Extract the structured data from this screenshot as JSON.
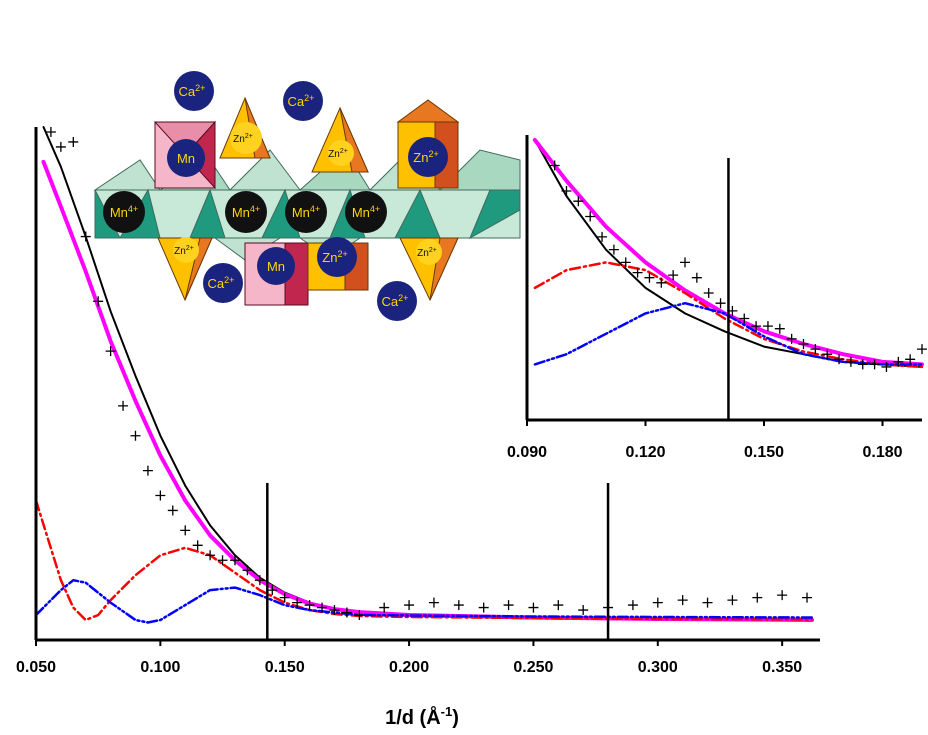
{
  "chart_data": [
    {
      "type": "scatter",
      "panel": "main",
      "xlabel": "1/d (Å",
      "xlabel_sup": "-1",
      "xlabel_close": ")",
      "xlim": [
        0.05,
        0.362
      ],
      "ylim": [
        0,
        1
      ],
      "yaxis_ticks": false,
      "xticks": [
        0.05,
        0.1,
        0.15,
        0.2,
        0.25,
        0.3,
        0.35
      ],
      "xtick_labels": [
        "0.050",
        "0.100",
        "0.150",
        "0.200",
        "0.250",
        "0.300",
        "0.350"
      ],
      "vlines": [
        0.143,
        0.28
      ],
      "grid": false,
      "legend": "none",
      "series": [
        {
          "kind": "markers",
          "marker": "+",
          "color": "#000000",
          "x": [
            0.056,
            0.06,
            0.065,
            0.07,
            0.075,
            0.08,
            0.085,
            0.09,
            0.095,
            0.1,
            0.105,
            0.11,
            0.115,
            0.12,
            0.125,
            0.13,
            0.135,
            0.14,
            0.145,
            0.15,
            0.155,
            0.16,
            0.165,
            0.17,
            0.175,
            0.18,
            0.19,
            0.2,
            0.21,
            0.22,
            0.23,
            0.24,
            0.25,
            0.26,
            0.27,
            0.28,
            0.29,
            0.3,
            0.31,
            0.32,
            0.33,
            0.34,
            0.35,
            0.36
          ],
          "y": [
            0.99,
            0.96,
            0.97,
            0.78,
            0.65,
            0.55,
            0.44,
            0.38,
            0.31,
            0.26,
            0.23,
            0.19,
            0.16,
            0.14,
            0.13,
            0.13,
            0.11,
            0.09,
            0.07,
            0.055,
            0.045,
            0.04,
            0.035,
            0.03,
            0.025,
            0.02,
            0.035,
            0.04,
            0.045,
            0.04,
            0.035,
            0.04,
            0.035,
            0.04,
            0.03,
            0.035,
            0.04,
            0.045,
            0.05,
            0.045,
            0.05,
            0.055,
            0.06,
            0.055
          ]
        },
        {
          "kind": "line",
          "style": "solid",
          "color": "#000000",
          "x": [
            0.053,
            0.06,
            0.07,
            0.08,
            0.09,
            0.1,
            0.11,
            0.12,
            0.13,
            0.14,
            0.15,
            0.16,
            0.17,
            0.18,
            0.2,
            0.25,
            0.3,
            0.362
          ],
          "y": [
            1.0,
            0.92,
            0.78,
            0.63,
            0.5,
            0.38,
            0.28,
            0.2,
            0.14,
            0.095,
            0.065,
            0.045,
            0.032,
            0.025,
            0.018,
            0.013,
            0.011,
            0.01
          ]
        },
        {
          "kind": "line",
          "style": "solid-thick",
          "color": "#ff00ff",
          "x": [
            0.053,
            0.06,
            0.07,
            0.08,
            0.09,
            0.1,
            0.11,
            0.12,
            0.13,
            0.14,
            0.15,
            0.16,
            0.17,
            0.18,
            0.2,
            0.25,
            0.3,
            0.362
          ],
          "y": [
            0.93,
            0.84,
            0.71,
            0.57,
            0.45,
            0.34,
            0.25,
            0.18,
            0.13,
            0.09,
            0.062,
            0.043,
            0.032,
            0.026,
            0.02,
            0.015,
            0.012,
            0.01
          ]
        },
        {
          "kind": "line",
          "style": "dash-dot",
          "color": "#ff0000",
          "x": [
            0.05,
            0.055,
            0.06,
            0.065,
            0.07,
            0.075,
            0.08,
            0.09,
            0.1,
            0.11,
            0.12,
            0.13,
            0.14,
            0.15,
            0.16,
            0.17,
            0.18,
            0.2,
            0.25,
            0.3,
            0.362
          ],
          "y": [
            0.25,
            0.17,
            0.09,
            0.035,
            0.01,
            0.02,
            0.05,
            0.1,
            0.14,
            0.155,
            0.14,
            0.105,
            0.07,
            0.045,
            0.03,
            0.022,
            0.018,
            0.016,
            0.014,
            0.012,
            0.011
          ]
        },
        {
          "kind": "line",
          "style": "dash-dot-dot",
          "color": "#0000ff",
          "x": [
            0.05,
            0.06,
            0.065,
            0.07,
            0.08,
            0.09,
            0.095,
            0.1,
            0.11,
            0.12,
            0.13,
            0.14,
            0.15,
            0.16,
            0.17,
            0.18,
            0.2,
            0.25,
            0.3,
            0.362
          ],
          "y": [
            0.02,
            0.07,
            0.09,
            0.085,
            0.045,
            0.01,
            0.005,
            0.01,
            0.04,
            0.07,
            0.075,
            0.06,
            0.04,
            0.03,
            0.025,
            0.02,
            0.019,
            0.017,
            0.016,
            0.015
          ]
        }
      ]
    },
    {
      "type": "scatter",
      "panel": "inset",
      "xlim": [
        0.09,
        0.19
      ],
      "ylim": [
        0,
        1
      ],
      "yaxis_ticks": false,
      "xticks": [
        0.09,
        0.12,
        0.15,
        0.18
      ],
      "xtick_labels": [
        "0.090",
        "0.120",
        "0.150",
        "0.180"
      ],
      "vlines": [
        0.141
      ],
      "grid": false,
      "legend": "none",
      "series": [
        {
          "kind": "markers",
          "marker": "+",
          "color": "#000000",
          "x": [
            0.097,
            0.1,
            0.103,
            0.106,
            0.109,
            0.112,
            0.115,
            0.118,
            0.121,
            0.124,
            0.127,
            0.13,
            0.133,
            0.136,
            0.139,
            0.142,
            0.145,
            0.148,
            0.151,
            0.154,
            0.157,
            0.16,
            0.163,
            0.166,
            0.169,
            0.172,
            0.175,
            0.178,
            0.181,
            0.184,
            0.187,
            0.19
          ],
          "y": [
            0.9,
            0.8,
            0.76,
            0.7,
            0.62,
            0.57,
            0.52,
            0.48,
            0.46,
            0.44,
            0.47,
            0.52,
            0.46,
            0.4,
            0.36,
            0.33,
            0.3,
            0.27,
            0.27,
            0.26,
            0.22,
            0.2,
            0.18,
            0.16,
            0.14,
            0.13,
            0.12,
            0.12,
            0.11,
            0.13,
            0.14,
            0.18
          ]
        },
        {
          "kind": "line",
          "style": "solid",
          "color": "#000000",
          "x": [
            0.092,
            0.1,
            0.11,
            0.12,
            0.13,
            0.14,
            0.15,
            0.16,
            0.17,
            0.18,
            0.19
          ],
          "y": [
            1.0,
            0.78,
            0.57,
            0.42,
            0.32,
            0.25,
            0.19,
            0.16,
            0.13,
            0.12,
            0.11
          ]
        },
        {
          "kind": "line",
          "style": "solid-thick",
          "color": "#ff00ff",
          "x": [
            0.092,
            0.1,
            0.11,
            0.12,
            0.13,
            0.14,
            0.15,
            0.16,
            0.17,
            0.18,
            0.19
          ],
          "y": [
            1.0,
            0.84,
            0.66,
            0.52,
            0.41,
            0.32,
            0.25,
            0.2,
            0.16,
            0.13,
            0.12
          ]
        },
        {
          "kind": "line",
          "style": "dash-dot",
          "color": "#ff0000",
          "x": [
            0.092,
            0.1,
            0.11,
            0.12,
            0.13,
            0.14,
            0.15,
            0.16,
            0.17,
            0.18,
            0.19
          ],
          "y": [
            0.42,
            0.49,
            0.52,
            0.49,
            0.4,
            0.3,
            0.22,
            0.17,
            0.14,
            0.12,
            0.11
          ]
        },
        {
          "kind": "line",
          "style": "dash-dot-dot",
          "color": "#0000ff",
          "x": [
            0.092,
            0.1,
            0.11,
            0.12,
            0.13,
            0.14,
            0.15,
            0.16,
            0.17,
            0.18,
            0.19
          ],
          "y": [
            0.12,
            0.16,
            0.24,
            0.32,
            0.36,
            0.32,
            0.23,
            0.16,
            0.13,
            0.12,
            0.12
          ]
        }
      ]
    }
  ],
  "structure_diagram": {
    "colors": {
      "octa_light": "#c8e8d8",
      "octa_dark": "#1f9a7e",
      "tetra_face": "#ffc000",
      "tetra_side": "#e87722",
      "pink_face": "#f4b6c8",
      "pink_side": "#c0264e",
      "ion": "#1a237e",
      "mn4_ion": "#111111",
      "ion_text": "#ffd700"
    },
    "ca_label": "Ca",
    "ca_sup": "2+",
    "zn_label": "Zn",
    "zn_sup": "2+",
    "mn4_label": "Mn",
    "mn4_sup": "4+",
    "mn_label": "Mn"
  }
}
